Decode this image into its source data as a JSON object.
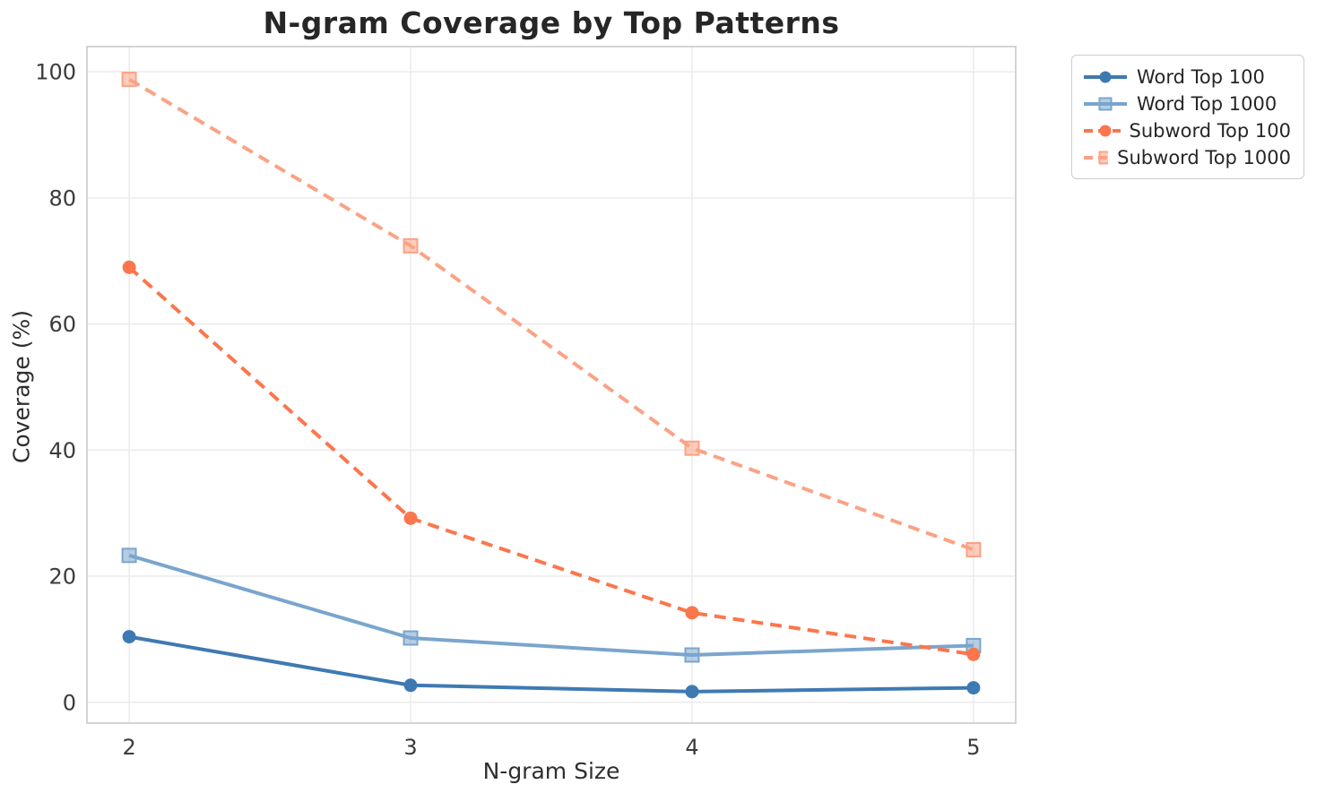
{
  "chart_data": {
    "type": "line",
    "title": "N-gram Coverage by Top Patterns",
    "xlabel": "N-gram Size",
    "ylabel": "Coverage (%)",
    "x": [
      2,
      3,
      4,
      5
    ],
    "xticks": [
      "2",
      "3",
      "4",
      "5"
    ],
    "yticks": [
      0,
      20,
      40,
      60,
      80,
      100
    ],
    "xlim": [
      1.85,
      5.15
    ],
    "ylim": [
      -3.3,
      104
    ],
    "grid": true,
    "legend_position": "outside-upper-right",
    "series": [
      {
        "name": "Word Top 100",
        "values": [
          10.4,
          2.7,
          1.7,
          2.3
        ],
        "color": "#3e7ab2",
        "marker": "circle",
        "line": "solid"
      },
      {
        "name": "Word Top 1000",
        "values": [
          23.3,
          10.2,
          7.5,
          9.0
        ],
        "color": "#7aa5cd",
        "marker": "square",
        "line": "solid"
      },
      {
        "name": "Subword Top 100",
        "values": [
          69.0,
          29.2,
          14.2,
          7.6
        ],
        "color": "#fb764c",
        "marker": "circle",
        "line": "dashed"
      },
      {
        "name": "Subword Top 1000",
        "values": [
          98.8,
          72.4,
          40.3,
          24.2
        ],
        "color": "#fba285",
        "marker": "square",
        "line": "dashed"
      }
    ],
    "style": {
      "grid_color": "#ebebeb",
      "spine_color": "#cacaca",
      "tick_label_color": "#3b3b3b",
      "title_color": "#262626"
    }
  }
}
